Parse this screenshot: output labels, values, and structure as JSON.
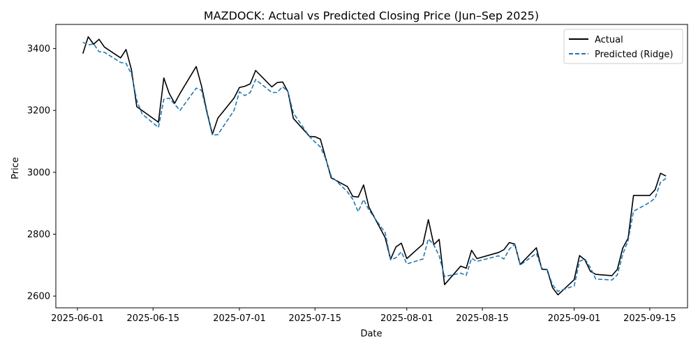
{
  "chart_data": {
    "type": "line",
    "title": "MAZDOCK: Actual vs Predicted Closing Price (Jun–Sep 2025)",
    "xlabel": "Date",
    "ylabel": "Price",
    "xlim": [
      "2025-05-28",
      "2025-09-22"
    ],
    "ylim": [
      2562,
      3478
    ],
    "x_ticks": [
      "2025-06-01",
      "2025-06-15",
      "2025-07-01",
      "2025-07-15",
      "2025-08-01",
      "2025-08-15",
      "2025-09-01",
      "2025-09-15"
    ],
    "y_ticks": [
      2600,
      2800,
      3000,
      3200,
      3400
    ],
    "grid": false,
    "legend_position": "top-right",
    "series": [
      {
        "name": "Actual",
        "color": "#000000",
        "style": "solid",
        "points": [
          [
            "2025-06-02",
            3384
          ],
          [
            "2025-06-03",
            3438
          ],
          [
            "2025-06-04",
            3414
          ],
          [
            "2025-06-05",
            3430
          ],
          [
            "2025-06-06",
            3405
          ],
          [
            "2025-06-09",
            3370
          ],
          [
            "2025-06-10",
            3397
          ],
          [
            "2025-06-11",
            3332
          ],
          [
            "2025-06-12",
            3212
          ],
          [
            "2025-06-16",
            3162
          ],
          [
            "2025-06-17",
            3305
          ],
          [
            "2025-06-18",
            3255
          ],
          [
            "2025-06-19",
            3223
          ],
          [
            "2025-06-20",
            3255
          ],
          [
            "2025-06-23",
            3342
          ],
          [
            "2025-06-24",
            3278
          ],
          [
            "2025-06-25",
            3194
          ],
          [
            "2025-06-26",
            3123
          ],
          [
            "2025-06-27",
            3175
          ],
          [
            "2025-06-30",
            3240
          ],
          [
            "2025-07-01",
            3274
          ],
          [
            "2025-07-02",
            3278
          ],
          [
            "2025-07-03",
            3286
          ],
          [
            "2025-07-04",
            3329
          ],
          [
            "2025-07-07",
            3276
          ],
          [
            "2025-07-08",
            3290
          ],
          [
            "2025-07-09",
            3292
          ],
          [
            "2025-07-10",
            3260
          ],
          [
            "2025-07-11",
            3174
          ],
          [
            "2025-07-14",
            3116
          ],
          [
            "2025-07-15",
            3115
          ],
          [
            "2025-07-16",
            3107
          ],
          [
            "2025-07-17",
            3044
          ],
          [
            "2025-07-18",
            2982
          ],
          [
            "2025-07-21",
            2954
          ],
          [
            "2025-07-22",
            2922
          ],
          [
            "2025-07-23",
            2920
          ],
          [
            "2025-07-24",
            2959
          ],
          [
            "2025-07-25",
            2887
          ],
          [
            "2025-07-28",
            2789
          ],
          [
            "2025-07-29",
            2719
          ],
          [
            "2025-07-30",
            2759
          ],
          [
            "2025-07-31",
            2771
          ],
          [
            "2025-08-01",
            2721
          ],
          [
            "2025-08-04",
            2768
          ],
          [
            "2025-08-05",
            2847
          ],
          [
            "2025-08-06",
            2766
          ],
          [
            "2025-08-07",
            2783
          ],
          [
            "2025-08-08",
            2637
          ],
          [
            "2025-08-11",
            2697
          ],
          [
            "2025-08-12",
            2690
          ],
          [
            "2025-08-13",
            2748
          ],
          [
            "2025-08-14",
            2721
          ],
          [
            "2025-08-18",
            2741
          ],
          [
            "2025-08-19",
            2750
          ],
          [
            "2025-08-20",
            2773
          ],
          [
            "2025-08-21",
            2768
          ],
          [
            "2025-08-22",
            2702
          ],
          [
            "2025-08-25",
            2756
          ],
          [
            "2025-08-26",
            2687
          ],
          [
            "2025-08-27",
            2685
          ],
          [
            "2025-08-28",
            2627
          ],
          [
            "2025-08-29",
            2604
          ],
          [
            "2025-09-01",
            2653
          ],
          [
            "2025-09-02",
            2731
          ],
          [
            "2025-09-03",
            2717
          ],
          [
            "2025-09-04",
            2680
          ],
          [
            "2025-09-05",
            2670
          ],
          [
            "2025-09-08",
            2666
          ],
          [
            "2025-09-09",
            2686
          ],
          [
            "2025-09-10",
            2755
          ],
          [
            "2025-09-11",
            2787
          ],
          [
            "2025-09-12",
            2925
          ],
          [
            "2025-09-15",
            2925
          ],
          [
            "2025-09-16",
            2944
          ],
          [
            "2025-09-17",
            2997
          ],
          [
            "2025-09-18",
            2988
          ]
        ]
      },
      {
        "name": "Predicted (Ridge)",
        "color": "#1f77b4",
        "style": "dashed",
        "points": [
          [
            "2025-06-02",
            3420
          ],
          [
            "2025-06-03",
            3412
          ],
          [
            "2025-06-04",
            3415
          ],
          [
            "2025-06-05",
            3390
          ],
          [
            "2025-06-06",
            3388
          ],
          [
            "2025-06-09",
            3355
          ],
          [
            "2025-06-10",
            3352
          ],
          [
            "2025-06-11",
            3318
          ],
          [
            "2025-06-12",
            3232
          ],
          [
            "2025-06-13",
            3188
          ],
          [
            "2025-06-16",
            3145
          ],
          [
            "2025-06-17",
            3236
          ],
          [
            "2025-06-18",
            3240
          ],
          [
            "2025-06-19",
            3220
          ],
          [
            "2025-06-20",
            3200
          ],
          [
            "2025-06-23",
            3272
          ],
          [
            "2025-06-24",
            3265
          ],
          [
            "2025-06-25",
            3190
          ],
          [
            "2025-06-26",
            3120
          ],
          [
            "2025-06-27",
            3122
          ],
          [
            "2025-06-30",
            3200
          ],
          [
            "2025-07-01",
            3260
          ],
          [
            "2025-07-02",
            3248
          ],
          [
            "2025-07-03",
            3258
          ],
          [
            "2025-07-04",
            3300
          ],
          [
            "2025-07-07",
            3258
          ],
          [
            "2025-07-08",
            3258
          ],
          [
            "2025-07-09",
            3277
          ],
          [
            "2025-07-10",
            3260
          ],
          [
            "2025-07-11",
            3192
          ],
          [
            "2025-07-14",
            3115
          ],
          [
            "2025-07-15",
            3098
          ],
          [
            "2025-07-16",
            3082
          ],
          [
            "2025-07-17",
            3043
          ],
          [
            "2025-07-18",
            2988
          ],
          [
            "2025-07-21",
            2937
          ],
          [
            "2025-07-22",
            2913
          ],
          [
            "2025-07-23",
            2873
          ],
          [
            "2025-07-24",
            2912
          ],
          [
            "2025-07-25",
            2878
          ],
          [
            "2025-07-28",
            2805
          ],
          [
            "2025-07-29",
            2717
          ],
          [
            "2025-07-30",
            2724
          ],
          [
            "2025-07-31",
            2743
          ],
          [
            "2025-08-01",
            2704
          ],
          [
            "2025-08-04",
            2720
          ],
          [
            "2025-08-05",
            2785
          ],
          [
            "2025-08-06",
            2765
          ],
          [
            "2025-08-07",
            2730
          ],
          [
            "2025-08-08",
            2663
          ],
          [
            "2025-08-11",
            2674
          ],
          [
            "2025-08-12",
            2667
          ],
          [
            "2025-08-13",
            2722
          ],
          [
            "2025-08-14",
            2712
          ],
          [
            "2025-08-18",
            2730
          ],
          [
            "2025-08-19",
            2720
          ],
          [
            "2025-08-20",
            2752
          ],
          [
            "2025-08-21",
            2767
          ],
          [
            "2025-08-22",
            2700
          ],
          [
            "2025-08-25",
            2738
          ],
          [
            "2025-08-26",
            2690
          ],
          [
            "2025-08-27",
            2686
          ],
          [
            "2025-08-28",
            2636
          ],
          [
            "2025-08-29",
            2615
          ],
          [
            "2025-09-01",
            2633
          ],
          [
            "2025-09-02",
            2712
          ],
          [
            "2025-09-03",
            2720
          ],
          [
            "2025-09-04",
            2692
          ],
          [
            "2025-09-05",
            2655
          ],
          [
            "2025-09-08",
            2652
          ],
          [
            "2025-09-09",
            2668
          ],
          [
            "2025-09-10",
            2735
          ],
          [
            "2025-09-11",
            2780
          ],
          [
            "2025-09-12",
            2874
          ],
          [
            "2025-09-15",
            2903
          ],
          [
            "2025-09-16",
            2917
          ],
          [
            "2025-09-17",
            2968
          ],
          [
            "2025-09-18",
            2980
          ]
        ]
      }
    ]
  }
}
